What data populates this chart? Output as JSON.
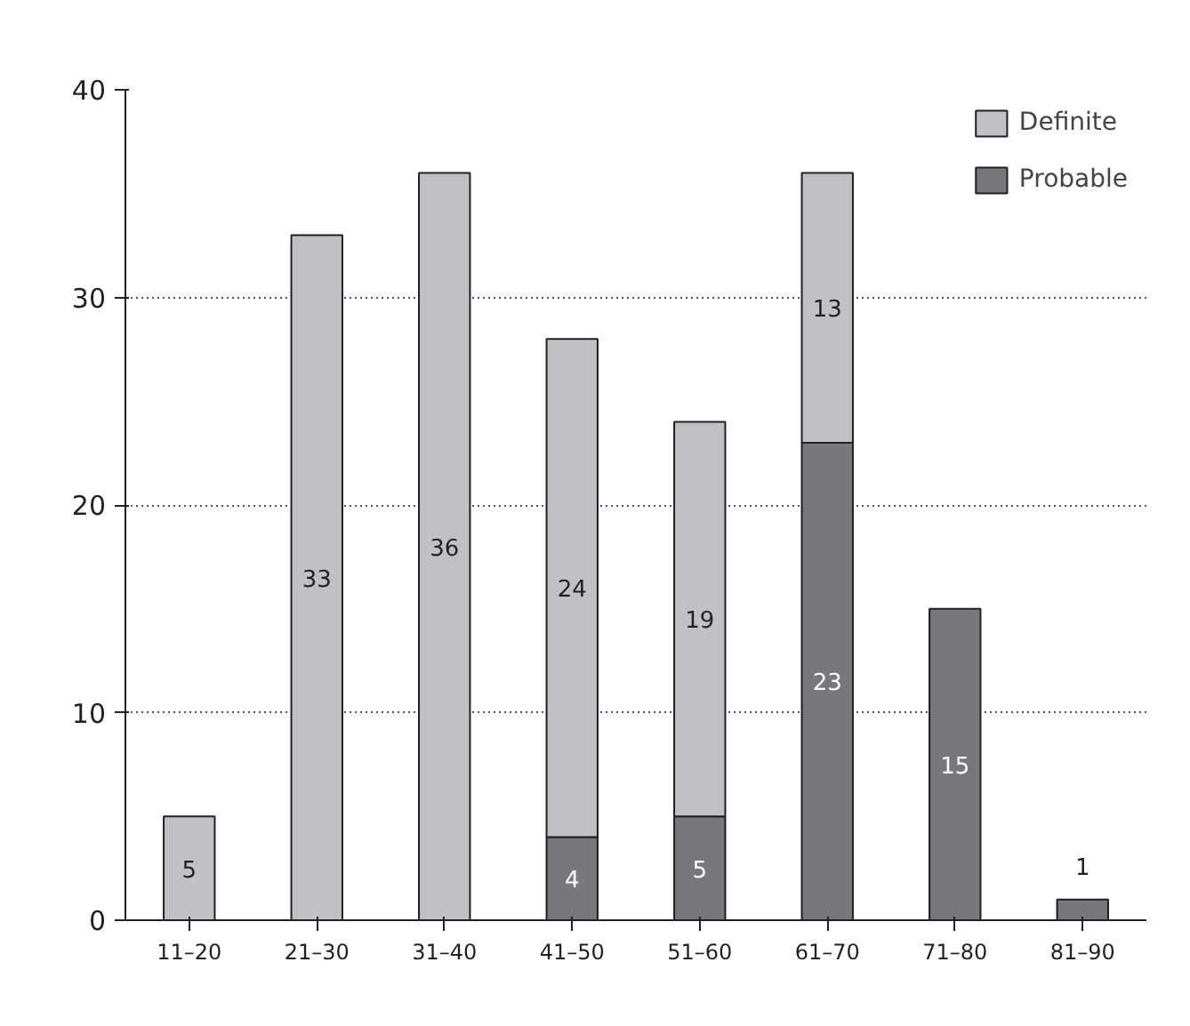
{
  "chart_data": {
    "type": "bar",
    "stacked": true,
    "categories": [
      "11–20",
      "21–30",
      "31–40",
      "41–50",
      "51–60",
      "61–70",
      "71–80",
      "81–90"
    ],
    "series": [
      {
        "name": "Probable",
        "color": "#77787b",
        "values": [
          null,
          null,
          null,
          4,
          5,
          23,
          15,
          1
        ]
      },
      {
        "name": "Definite",
        "color": "#c0c1c4",
        "values": [
          5,
          33,
          36,
          24,
          19,
          13,
          null,
          null
        ]
      }
    ],
    "ylim": [
      0,
      40
    ],
    "yticks": [
      0,
      10,
      20,
      30,
      40
    ],
    "grid": "y",
    "legend": "top right",
    "data_labels": true
  }
}
